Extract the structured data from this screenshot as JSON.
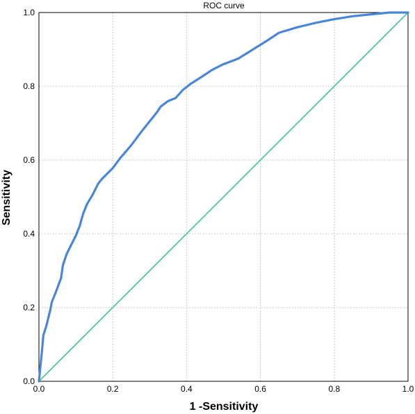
{
  "chart_data": {
    "type": "line",
    "title": "ROC curve",
    "xlabel": "1 -Sensitivity",
    "ylabel": "Sensitivity",
    "xlim": [
      0,
      1
    ],
    "ylim": [
      0,
      1
    ],
    "x_ticks": [
      "0.0",
      "0.2",
      "0.4",
      "0.6",
      "0.8",
      "1.0"
    ],
    "y_ticks": [
      "0.0",
      "0.2",
      "0.4",
      "0.6",
      "0.8",
      "1.0"
    ],
    "grid": true,
    "series": [
      {
        "color": "#4a86d8",
        "points": [
          [
            0.0,
            0.0
          ],
          [
            0.003,
            0.03
          ],
          [
            0.008,
            0.08
          ],
          [
            0.012,
            0.125
          ],
          [
            0.02,
            0.15
          ],
          [
            0.03,
            0.19
          ],
          [
            0.035,
            0.215
          ],
          [
            0.045,
            0.24
          ],
          [
            0.06,
            0.28
          ],
          [
            0.065,
            0.315
          ],
          [
            0.075,
            0.345
          ],
          [
            0.09,
            0.375
          ],
          [
            0.1,
            0.395
          ],
          [
            0.11,
            0.42
          ],
          [
            0.12,
            0.455
          ],
          [
            0.13,
            0.48
          ],
          [
            0.145,
            0.505
          ],
          [
            0.16,
            0.535
          ],
          [
            0.17,
            0.548
          ],
          [
            0.2,
            0.578
          ],
          [
            0.22,
            0.605
          ],
          [
            0.25,
            0.64
          ],
          [
            0.28,
            0.68
          ],
          [
            0.3,
            0.705
          ],
          [
            0.32,
            0.73
          ],
          [
            0.33,
            0.745
          ],
          [
            0.35,
            0.76
          ],
          [
            0.37,
            0.768
          ],
          [
            0.39,
            0.79
          ],
          [
            0.41,
            0.806
          ],
          [
            0.44,
            0.825
          ],
          [
            0.47,
            0.845
          ],
          [
            0.5,
            0.86
          ],
          [
            0.54,
            0.875
          ],
          [
            0.58,
            0.9
          ],
          [
            0.62,
            0.925
          ],
          [
            0.65,
            0.945
          ],
          [
            0.7,
            0.96
          ],
          [
            0.75,
            0.972
          ],
          [
            0.8,
            0.982
          ],
          [
            0.85,
            0.99
          ],
          [
            0.9,
            0.995
          ],
          [
            0.95,
            1.0
          ],
          [
            1.0,
            1.0
          ]
        ]
      },
      {
        "color": "#4cc99a",
        "points": [
          [
            0.0,
            0.0
          ],
          [
            1.0,
            1.0
          ]
        ]
      }
    ]
  }
}
